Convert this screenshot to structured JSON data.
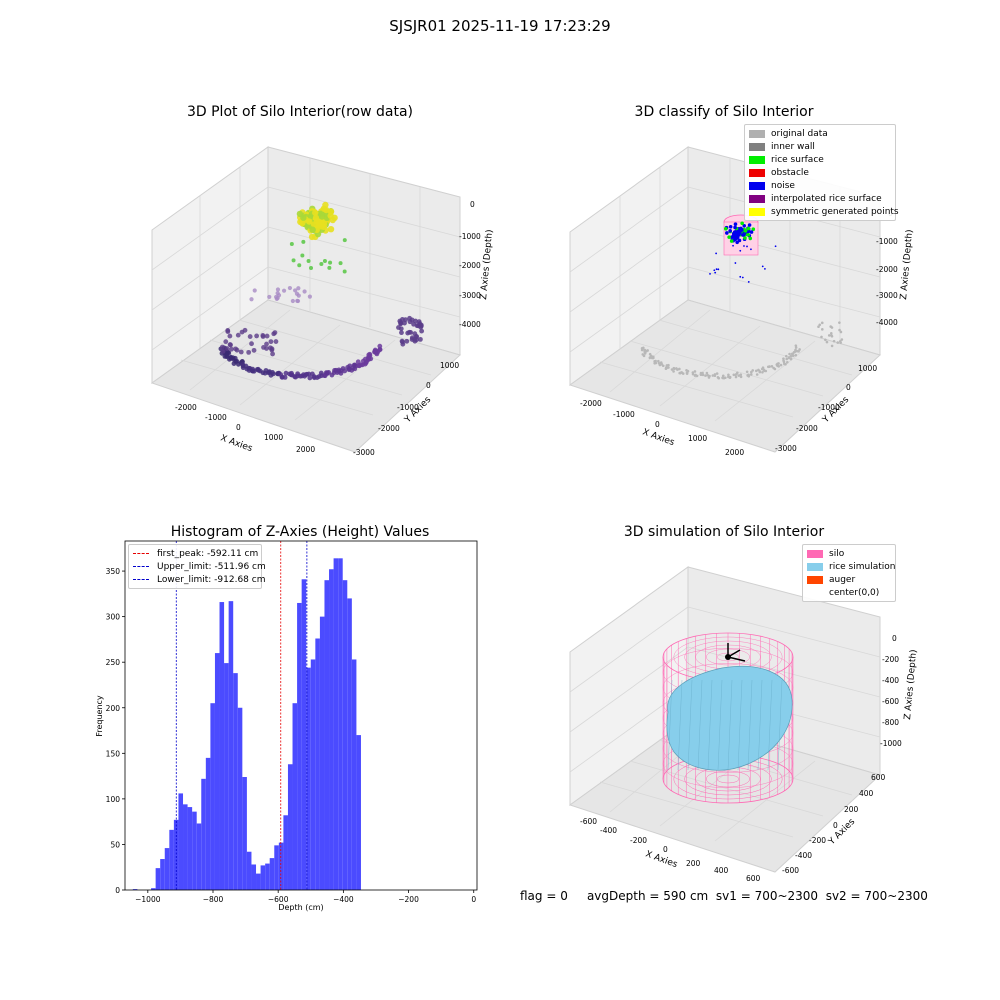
{
  "suptitle": "SJSJR01 2025-11-19 17:23:29",
  "colors": {
    "hist_bar": "#4B4BFF",
    "first_peak": "#e60000",
    "limits": "#0000cc",
    "silo": "#ff69b4",
    "rice_sim": "#87ceeb",
    "auger": "#ff4500"
  },
  "chart_data": [
    {
      "type": "scatter3d",
      "title": "3D Plot of Silo Interior(row data)",
      "xlabel": "X Axies",
      "ylabel": "Y Axies",
      "zlabel": "Z Axies (Depth)",
      "xticks": [
        "-2000",
        "-1000",
        "0",
        "1000",
        "2000"
      ],
      "yticks": [
        "1000",
        "0",
        "-1000",
        "-2000",
        "-3000"
      ],
      "zticks": [
        "0",
        "-1000",
        "-2000",
        "-3000",
        "-4000"
      ]
    },
    {
      "type": "scatter3d",
      "title": "3D classify of Silo Interior",
      "xlabel": "X Axies",
      "ylabel": "Y Axies",
      "zlabel": "Z Axies (Depth)",
      "xticks": [
        "-2000",
        "-1000",
        "0",
        "1000",
        "2000"
      ],
      "yticks": [
        "1000",
        "0",
        "-1000",
        "-2000",
        "-3000"
      ],
      "zticks": [
        "0",
        "-1000",
        "-2000",
        "-3000",
        "-4000"
      ],
      "legend": [
        {
          "label": "original data",
          "color": "#b0b0b0"
        },
        {
          "label": "inner wall",
          "color": "#808080"
        },
        {
          "label": "rice surface",
          "color": "#00ee00"
        },
        {
          "label": "obstacle",
          "color": "#ee0000"
        },
        {
          "label": "noise",
          "color": "#0000ee"
        },
        {
          "label": "interpolated rice surface",
          "color": "#800080"
        },
        {
          "label": "symmetric generated points",
          "color": "#ffff00"
        }
      ]
    },
    {
      "type": "bar",
      "title": "Histogram of Z-Axies (Height) Values",
      "xlabel": "Depth (cm)",
      "ylabel": "Frequency",
      "xlim": [
        -1070,
        10
      ],
      "ylim": [
        0,
        383
      ],
      "xticks": [
        -1000,
        -800,
        -600,
        -400,
        -200,
        0
      ],
      "xtick_labels": [
        "−1000",
        "−800",
        "−600",
        "−400",
        "−200",
        "0"
      ],
      "yticks": [
        0,
        50,
        100,
        150,
        200,
        250,
        300,
        350
      ],
      "bin_width": 14,
      "bin_start": -1046,
      "values": [
        1,
        0,
        0,
        0,
        2,
        24,
        34,
        46,
        66,
        77,
        106,
        94,
        91,
        86,
        73,
        122,
        145,
        205,
        260,
        316,
        249,
        317,
        238,
        200,
        124,
        42,
        28,
        18,
        27,
        29,
        35,
        49,
        52,
        82,
        138,
        205,
        315,
        341,
        244,
        253,
        276,
        300,
        340,
        352,
        364,
        364,
        340,
        320,
        253,
        170
      ],
      "vlines": [
        {
          "label": "first_peak: -592.11 cm",
          "x": -592.11,
          "color": "#e60000"
        },
        {
          "label": "Upper_limit: -511.96 cm",
          "x": -511.96,
          "color": "#0000cc"
        },
        {
          "label": "Lower_limit: -912.68 cm",
          "x": -912.68,
          "color": "#0000cc"
        }
      ]
    },
    {
      "type": "surface3d",
      "title": "3D simulation of Silo Interior",
      "xlabel": "X Axies",
      "ylabel": "Y Axies",
      "zlabel": "Z Axies (Depth)",
      "xticks": [
        "-600",
        "-400",
        "-200",
        "0",
        "200",
        "400",
        "600"
      ],
      "yticks": [
        "600",
        "400",
        "200",
        "0",
        "-200",
        "-400",
        "-600"
      ],
      "zticks": [
        "0",
        "-200",
        "-400",
        "-600",
        "-800",
        "-1000"
      ],
      "legend": [
        {
          "label": "silo",
          "color": "#ff69b4"
        },
        {
          "label": "rice simulation",
          "color": "#87ceeb"
        },
        {
          "label": "auger",
          "color": "#ff4500"
        },
        {
          "label": "center(0,0)",
          "color": "#ffffff"
        }
      ]
    }
  ],
  "footer": {
    "flag": "flag = 0",
    "avg_depth": "avgDepth = 590 cm",
    "sv1": "sv1 = 700~2300",
    "sv2": "sv2 = 700~2300"
  }
}
